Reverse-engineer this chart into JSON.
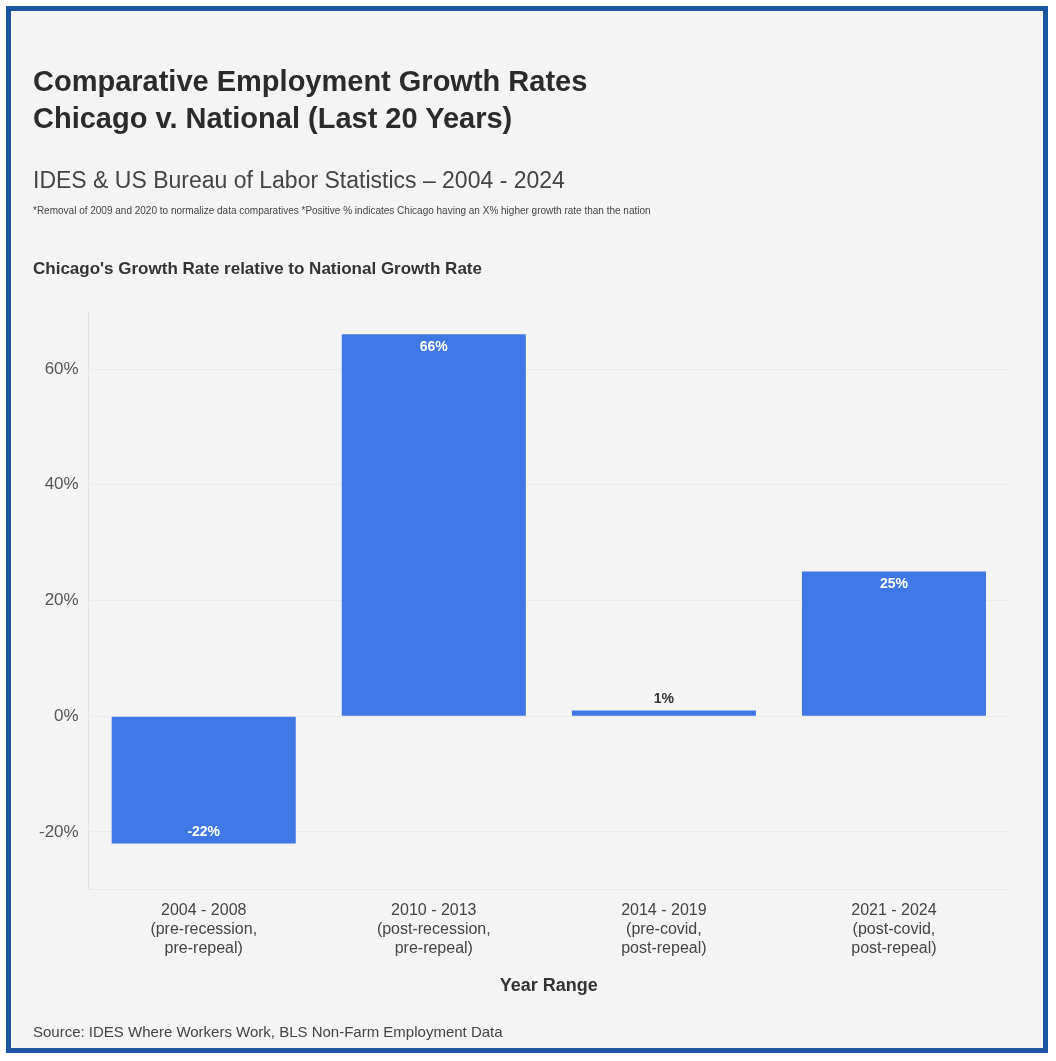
{
  "chart_data": {
    "type": "bar",
    "title": "Comparative Employment Growth Rates Chicago v. National (Last 20 Years)",
    "subtitle": "IDES & US Bureau of Labor Statistics – 2004 - 2024",
    "annotations": [
      "*Removal of 2009 and 2020 to normalize data comparatives *Positive % indicates Chicago having an X% higher growth rate than the nation",
      "Chicago's Growth Rate relative to National Growth Rate",
      "Source: IDES Where Workers Work, BLS Non-Farm Employment Data"
    ],
    "xlabel": "Year Range",
    "categories": [
      "2004 - 2008 (pre-recession, pre-repeal)",
      "2010 - 2013 (post-recession, pre-repeal)",
      "2014 - 2019 (pre-covid, post-repeal)",
      "2021 - 2024 (post-covid, post-repeal)"
    ],
    "values": [
      -22,
      66,
      1,
      25
    ],
    "value_labels": [
      "-22%",
      "66%",
      "1%",
      "25%"
    ],
    "color": "#3f78e4",
    "ylim": [
      -30,
      70
    ],
    "yticks": [
      {
        "value": -20,
        "label": "-20%"
      },
      {
        "value": 0,
        "label": "0%"
      },
      {
        "value": 20,
        "label": "20%"
      },
      {
        "value": 40,
        "label": "40%"
      },
      {
        "value": 60,
        "label": "60%"
      }
    ],
    "grid": "y"
  }
}
